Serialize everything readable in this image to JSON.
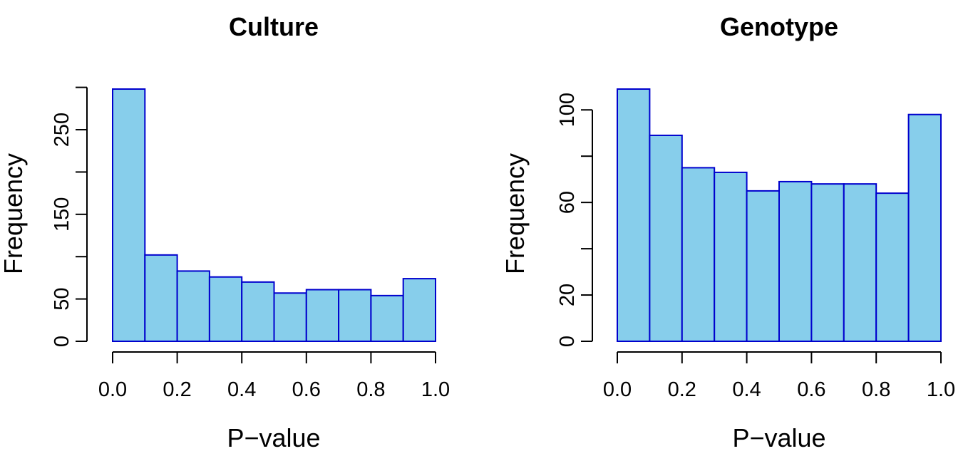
{
  "chart_data": [
    {
      "type": "bar",
      "histogram": true,
      "title": "Culture",
      "xlabel": "P−value",
      "ylabel": "Frequency",
      "bin_edges": [
        0.0,
        0.1,
        0.2,
        0.3,
        0.4,
        0.5,
        0.6,
        0.7,
        0.8,
        0.9,
        1.0
      ],
      "values": [
        298,
        102,
        83,
        76,
        70,
        57,
        61,
        61,
        54,
        74
      ],
      "xlim": [
        0,
        1
      ],
      "ylim": [
        0,
        298
      ],
      "xticks": [
        0.0,
        0.2,
        0.4,
        0.6,
        0.8,
        1.0
      ],
      "xtick_labels": [
        "0.0",
        "0.2",
        "0.4",
        "0.6",
        "0.8",
        "1.0"
      ],
      "yticks": [
        0,
        50,
        100,
        150,
        200,
        250,
        300
      ],
      "ytick_labels": [
        "0",
        "50",
        "",
        "150",
        "",
        "250",
        ""
      ],
      "bar_fill": "#87ceeb",
      "bar_edge": "#0000cd",
      "grid": false
    },
    {
      "type": "bar",
      "histogram": true,
      "title": "Genotype",
      "xlabel": "P−value",
      "ylabel": "Frequency",
      "bin_edges": [
        0.0,
        0.1,
        0.2,
        0.3,
        0.4,
        0.5,
        0.6,
        0.7,
        0.8,
        0.9,
        1.0
      ],
      "values": [
        109,
        89,
        75,
        73,
        65,
        69,
        68,
        68,
        64,
        98
      ],
      "xlim": [
        0,
        1
      ],
      "ylim": [
        0,
        109
      ],
      "xticks": [
        0.0,
        0.2,
        0.4,
        0.6,
        0.8,
        1.0
      ],
      "xtick_labels": [
        "0.0",
        "0.2",
        "0.4",
        "0.6",
        "0.8",
        "1.0"
      ],
      "yticks": [
        0,
        20,
        40,
        60,
        80,
        100
      ],
      "ytick_labels": [
        "0",
        "20",
        "",
        "60",
        "",
        "100"
      ],
      "bar_fill": "#87ceeb",
      "bar_edge": "#0000cd",
      "grid": false
    }
  ]
}
